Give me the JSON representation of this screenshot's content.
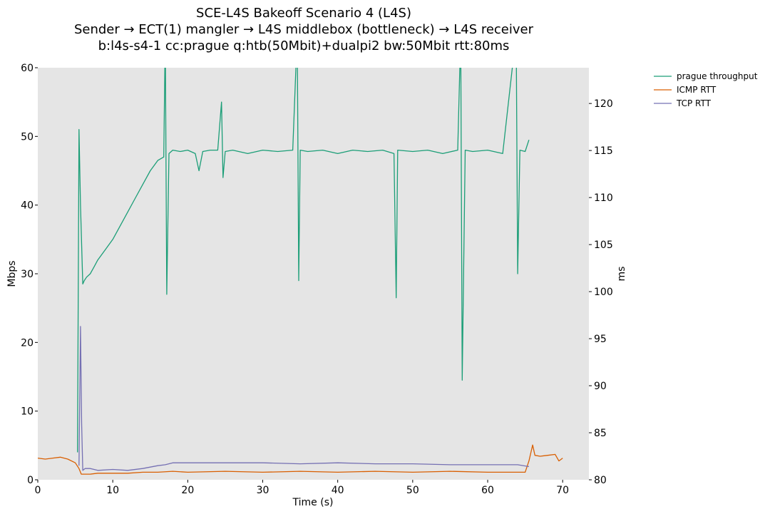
{
  "chart_data": {
    "type": "line",
    "title": [
      "SCE-L4S Bakeoff Scenario 4 (L4S)",
      "Sender → ECT(1) mangler → L4S middlebox (bottleneck) → L4S receiver",
      "b:l4s-s4-1 cc:prague q:htb(50Mbit)+dualpi2 bw:50Mbit rtt:80ms"
    ],
    "xlabel": "Time (s)",
    "ylabel_left": "Mbps",
    "ylabel_right": "ms",
    "xlim": [
      0,
      73.5
    ],
    "ylim_left": [
      0,
      60
    ],
    "ylim_right": [
      80,
      123.8
    ],
    "x_ticks": [
      0,
      10,
      20,
      30,
      40,
      50,
      60,
      70
    ],
    "y_ticks_left": [
      0,
      10,
      20,
      30,
      40,
      50,
      60
    ],
    "y_ticks_right": [
      80,
      85,
      90,
      95,
      100,
      105,
      110,
      115,
      120
    ],
    "legend_position": "outside-top-right",
    "grid": false,
    "series": [
      {
        "name": "prague throughput",
        "axis": "left",
        "color": "#1b9e77",
        "x": [
          5.3,
          5.5,
          5.7,
          6.0,
          6.2,
          6.5,
          7.0,
          7.5,
          8.0,
          9.0,
          10.0,
          11.0,
          12.0,
          13.0,
          14.0,
          15.0,
          16.0,
          16.8,
          17.0,
          17.2,
          17.5,
          18.0,
          19.0,
          20.0,
          21.0,
          21.5,
          22.0,
          23.0,
          24.0,
          24.5,
          24.7,
          25.0,
          26.0,
          28.0,
          30.0,
          32.0,
          34.0,
          34.6,
          34.8,
          35.0,
          36.0,
          38.0,
          40.0,
          42.0,
          44.0,
          46.0,
          47.5,
          47.8,
          48.0,
          50.0,
          52.0,
          54.0,
          56.0,
          56.4,
          56.6,
          57.0,
          58.0,
          60.0,
          62.0,
          63.8,
          64.0,
          64.3,
          65.0,
          65.5
        ],
        "values": [
          4,
          51,
          40,
          28.5,
          29,
          29.5,
          30,
          31,
          32,
          33.5,
          35,
          37,
          39,
          41,
          43,
          45,
          46.5,
          47,
          65,
          27,
          47.5,
          48,
          47.8,
          48,
          47.5,
          45,
          47.8,
          48,
          48,
          55,
          44,
          47.8,
          48,
          47.5,
          48,
          47.8,
          48,
          65,
          29,
          48,
          47.8,
          48,
          47.5,
          48,
          47.8,
          48,
          47.5,
          26.5,
          48,
          47.8,
          48,
          47.5,
          48,
          65,
          14.5,
          48,
          47.8,
          48,
          47.5,
          65,
          30,
          48,
          47.8,
          49.5
        ]
      },
      {
        "name": "ICMP RTT",
        "axis": "right",
        "color": "#d95f02",
        "x": [
          0,
          1,
          2,
          3,
          4,
          5,
          5.5,
          5.8,
          6.0,
          7,
          8,
          10,
          12,
          14,
          16,
          18,
          20,
          25,
          30,
          35,
          40,
          45,
          50,
          55,
          60,
          65,
          65.5,
          66.0,
          66.3,
          67,
          68,
          69,
          69.5,
          70
        ],
        "values": [
          82.3,
          82.2,
          82.3,
          82.4,
          82.2,
          81.8,
          81.2,
          80.6,
          80.6,
          80.6,
          80.7,
          80.7,
          80.7,
          80.8,
          80.8,
          80.9,
          80.8,
          80.9,
          80.8,
          80.9,
          80.8,
          80.9,
          80.8,
          80.9,
          80.8,
          80.8,
          82.0,
          83.7,
          82.6,
          82.5,
          82.6,
          82.7,
          82.0,
          82.3
        ]
      },
      {
        "name": "TCP RTT",
        "axis": "right",
        "color": "#7570b3",
        "x": [
          5.5,
          5.7,
          5.85,
          6.0,
          6.3,
          7,
          8,
          10,
          12,
          14,
          16,
          17,
          18,
          20,
          25,
          30,
          35,
          40,
          45,
          50,
          55,
          60,
          64,
          65.5
        ],
        "values": [
          81.5,
          96.3,
          86.0,
          81.0,
          81.2,
          81.2,
          81.0,
          81.1,
          81.0,
          81.2,
          81.5,
          81.6,
          81.8,
          81.8,
          81.8,
          81.8,
          81.7,
          81.8,
          81.7,
          81.7,
          81.6,
          81.6,
          81.6,
          81.4
        ]
      }
    ]
  }
}
